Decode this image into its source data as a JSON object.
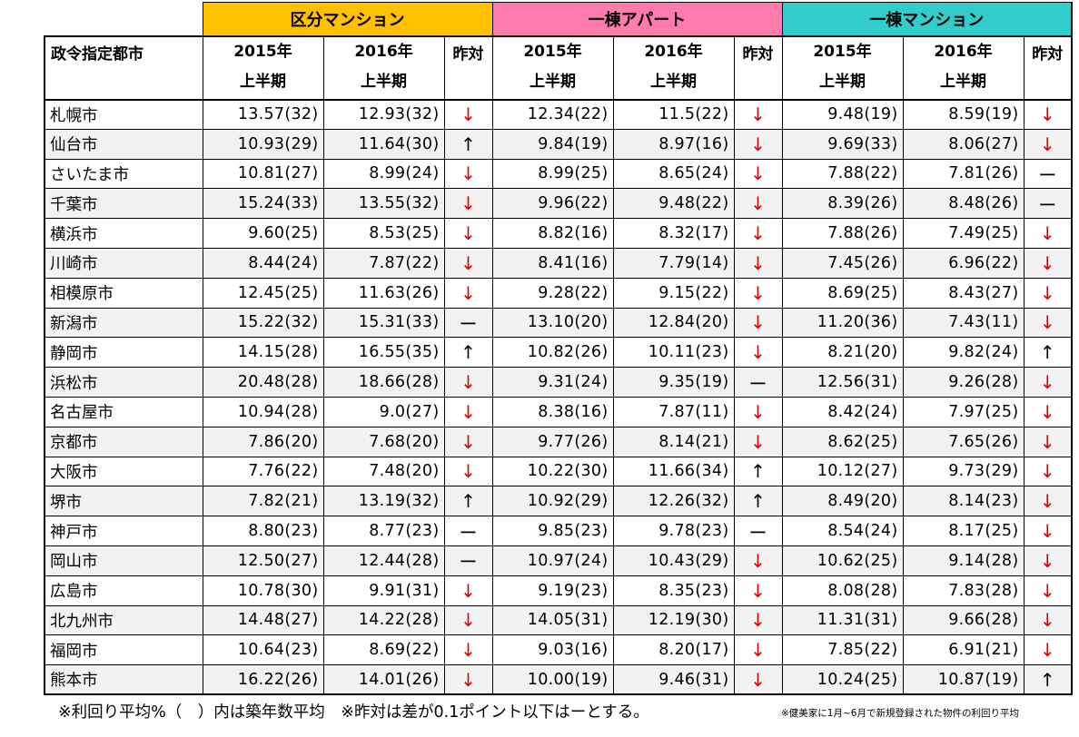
{
  "groups": [
    {
      "label": "区分マンション",
      "color": "#ffc000"
    },
    {
      "label": "一棟アパート",
      "color": "#ff7bac"
    },
    {
      "label": "一棟マンション",
      "color": "#33cccc"
    }
  ],
  "header": {
    "city": "政令指定都市",
    "y2015": "2015年",
    "y2016": "2016年",
    "half": "上半期",
    "compare": "昨対"
  },
  "arrows": {
    "down": "↓",
    "up": "↑",
    "flat": "ー"
  },
  "rows": [
    {
      "city": "札幌市",
      "v": [
        "13.57(32)",
        "12.93(32)",
        "down",
        "12.34(22)",
        "11.5(22)",
        "down",
        "9.48(19)",
        "8.59(19)",
        "down"
      ]
    },
    {
      "city": "仙台市",
      "v": [
        "10.93(29)",
        "11.64(30)",
        "up",
        "9.84(19)",
        "8.97(16)",
        "down",
        "9.69(33)",
        "8.06(27)",
        "down"
      ]
    },
    {
      "city": "さいたま市",
      "v": [
        "10.81(27)",
        "8.99(24)",
        "down",
        "8.99(25)",
        "8.65(24)",
        "down",
        "7.88(22)",
        "7.81(26)",
        "flat"
      ]
    },
    {
      "city": "千葉市",
      "v": [
        "15.24(33)",
        "13.55(32)",
        "down",
        "9.96(22)",
        "9.48(22)",
        "down",
        "8.39(26)",
        "8.48(26)",
        "flat"
      ]
    },
    {
      "city": "横浜市",
      "v": [
        "9.60(25)",
        "8.53(25)",
        "down",
        "8.82(16)",
        "8.32(17)",
        "down",
        "7.88(26)",
        "7.49(25)",
        "down"
      ]
    },
    {
      "city": "川崎市",
      "v": [
        "8.44(24)",
        "7.87(22)",
        "down",
        "8.41(16)",
        "7.79(14)",
        "down",
        "7.45(26)",
        "6.96(22)",
        "down"
      ]
    },
    {
      "city": "相模原市",
      "v": [
        "12.45(25)",
        "11.63(26)",
        "down",
        "9.28(22)",
        "9.15(22)",
        "down",
        "8.69(25)",
        "8.43(27)",
        "down"
      ]
    },
    {
      "city": "新潟市",
      "v": [
        "15.22(32)",
        "15.31(33)",
        "flat",
        "13.10(20)",
        "12.84(20)",
        "down",
        "11.20(36)",
        "7.43(11)",
        "down"
      ]
    },
    {
      "city": "静岡市",
      "v": [
        "14.15(28)",
        "16.55(35)",
        "up",
        "10.82(26)",
        "10.11(23)",
        "down",
        "8.21(20)",
        "9.82(24)",
        "up"
      ]
    },
    {
      "city": "浜松市",
      "v": [
        "20.48(28)",
        "18.66(28)",
        "down",
        "9.31(24)",
        "9.35(19)",
        "flat",
        "12.56(31)",
        "9.26(28)",
        "down"
      ]
    },
    {
      "city": "名古屋市",
      "v": [
        "10.94(28)",
        "9.0(27)",
        "down",
        "8.38(16)",
        "7.87(11)",
        "down",
        "8.42(24)",
        "7.97(25)",
        "down"
      ]
    },
    {
      "city": "京都市",
      "v": [
        "7.86(20)",
        "7.68(20)",
        "down",
        "9.77(26)",
        "8.14(21)",
        "down",
        "8.62(25)",
        "7.65(26)",
        "down"
      ]
    },
    {
      "city": "大阪市",
      "v": [
        "7.76(22)",
        "7.48(20)",
        "down",
        "10.22(30)",
        "11.66(34)",
        "up",
        "10.12(27)",
        "9.73(29)",
        "down"
      ]
    },
    {
      "city": "堺市",
      "v": [
        "7.82(21)",
        "13.19(32)",
        "up",
        "10.92(29)",
        "12.26(32)",
        "up",
        "8.49(20)",
        "8.14(23)",
        "down"
      ]
    },
    {
      "city": "神戸市",
      "v": [
        "8.80(23)",
        "8.77(23)",
        "flat",
        "9.85(23)",
        "9.78(23)",
        "flat",
        "8.54(24)",
        "8.17(25)",
        "down"
      ]
    },
    {
      "city": "岡山市",
      "v": [
        "12.50(27)",
        "12.44(28)",
        "flat",
        "10.97(24)",
        "10.43(29)",
        "down",
        "10.62(25)",
        "9.14(28)",
        "down"
      ]
    },
    {
      "city": "広島市",
      "v": [
        "10.78(30)",
        "9.91(31)",
        "down",
        "9.19(23)",
        "8.35(23)",
        "down",
        "8.08(28)",
        "7.83(28)",
        "down"
      ]
    },
    {
      "city": "北九州市",
      "v": [
        "14.48(27)",
        "14.22(28)",
        "down",
        "14.05(31)",
        "12.19(30)",
        "down",
        "11.31(31)",
        "9.66(28)",
        "down"
      ]
    },
    {
      "city": "福岡市",
      "v": [
        "10.64(23)",
        "8.69(22)",
        "down",
        "9.03(16)",
        "8.20(17)",
        "down",
        "7.85(22)",
        "6.91(21)",
        "down"
      ]
    },
    {
      "city": "熊本市",
      "v": [
        "16.22(26)",
        "14.01(26)",
        "down",
        "10.00(19)",
        "9.46(31)",
        "down",
        "10.24(25)",
        "10.87(19)",
        "up"
      ]
    }
  ],
  "notes": {
    "main": "※利回り平均%（　）内は築年数平均　※昨対は差が0.1ポイント以下はーとする。",
    "source": "※健美家に1月~6月で新規登録された物件の利回り平均"
  }
}
